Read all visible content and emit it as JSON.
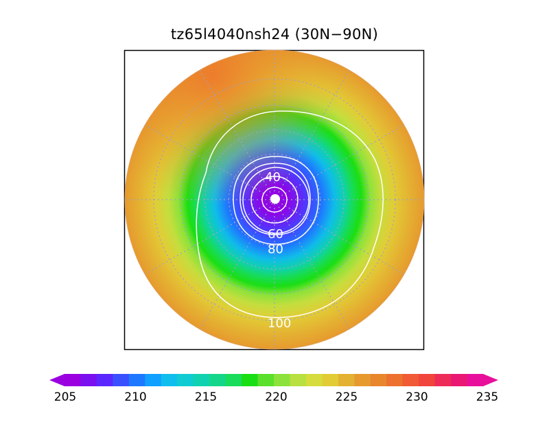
{
  "title": "tz65l4040nsh24 (30N−90N)",
  "map": {
    "projection": "north polar stereographic",
    "lat_range": [
      "30N",
      "90N"
    ],
    "field_min_center": 205,
    "field_max_edge": 231,
    "contour_color": "#ffffff",
    "grid_color": "#9aa3c8",
    "contour_labels": [
      {
        "value": 40,
        "text": "40"
      },
      {
        "value": 60,
        "text": "60"
      },
      {
        "value": 80,
        "text": "80"
      },
      {
        "value": 100,
        "text": "100"
      }
    ]
  },
  "colorbar": {
    "min": 205,
    "max": 235,
    "step": 1,
    "extend": "both",
    "tick_labels": [
      "205",
      "210",
      "215",
      "220",
      "225",
      "230",
      "235"
    ],
    "colors": [
      "#9a00e0",
      "#7a10f0",
      "#5a28ff",
      "#3a50ff",
      "#1e78ff",
      "#10a0ff",
      "#10beee",
      "#10ccd2",
      "#10d2b0",
      "#14d68a",
      "#18dc5a",
      "#1ade14",
      "#5ae02a",
      "#8ce23a",
      "#b8e040",
      "#d6dc3c",
      "#e2cc36",
      "#e4b232",
      "#e69a2e",
      "#e8862c",
      "#ec702e",
      "#f05a34",
      "#f0443c",
      "#ee2c58",
      "#ea1872",
      "#e8109a"
    ]
  }
}
